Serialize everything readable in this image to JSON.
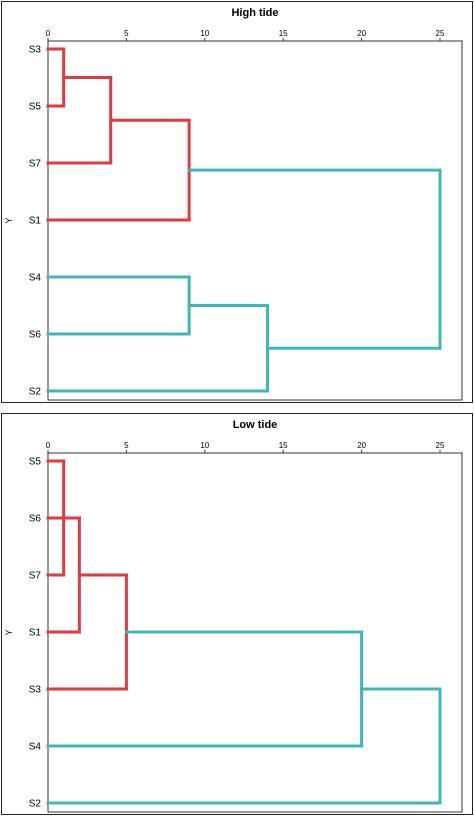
{
  "chart_data": [
    {
      "type": "dendrogram",
      "title": "High tide",
      "ylabel": "Y",
      "x_ticks": [
        0,
        5,
        10,
        15,
        20,
        25
      ],
      "xlim": [
        0,
        25
      ],
      "leaves": [
        "S3",
        "S5",
        "S7",
        "S1",
        "S4",
        "S6",
        "S2"
      ],
      "merges": [
        {
          "left": "S3",
          "right": "S5",
          "height": 1,
          "color": "#e03a3e"
        },
        {
          "left": "S3+S5",
          "right": "S7",
          "height": 4,
          "color": "#e03a3e"
        },
        {
          "left": "S3+S5+S7",
          "right": "S1",
          "height": 9,
          "color": "#e03a3e"
        },
        {
          "left": "S4",
          "right": "S6",
          "height": 9,
          "color": "#3cb8bd"
        },
        {
          "left": "S4+S6",
          "right": "S2",
          "height": 14,
          "color": "#3cb8bd"
        },
        {
          "left": "S3+S5+S7+S1",
          "right": "S4+S6+S2",
          "height": 25,
          "color": "#3cb8bd"
        }
      ]
    },
    {
      "type": "dendrogram",
      "title": "Low tide",
      "ylabel": "Y",
      "x_ticks": [
        0,
        5,
        10,
        15,
        20,
        25
      ],
      "xlim": [
        0,
        25
      ],
      "leaves": [
        "S5",
        "S6",
        "S7",
        "S1",
        "S3",
        "S4",
        "S2"
      ],
      "merges": [
        {
          "left": "S5",
          "right": "S7",
          "height": 1,
          "color": "#e03a3e"
        },
        {
          "left": "S5+S7",
          "right": "S6",
          "height": 2,
          "color": "#e03a3e"
        },
        {
          "left": "S5+S7+S6",
          "right": "S1",
          "height": 2,
          "color": "#e03a3e"
        },
        {
          "left": "S5+S7+S6+S1",
          "right": "S3",
          "height": 5,
          "color": "#e03a3e"
        },
        {
          "left": "S5+S7+S6+S1+S3",
          "right": "S4",
          "height": 20,
          "color": "#3cb8bd"
        },
        {
          "left": "S5+S7+S6+S1+S3+S4",
          "right": "S2",
          "height": 25,
          "color": "#3cb8bd"
        }
      ]
    }
  ],
  "colors": {
    "cluster_a": "#e03a3e",
    "cluster_b": "#3cb8bd"
  }
}
